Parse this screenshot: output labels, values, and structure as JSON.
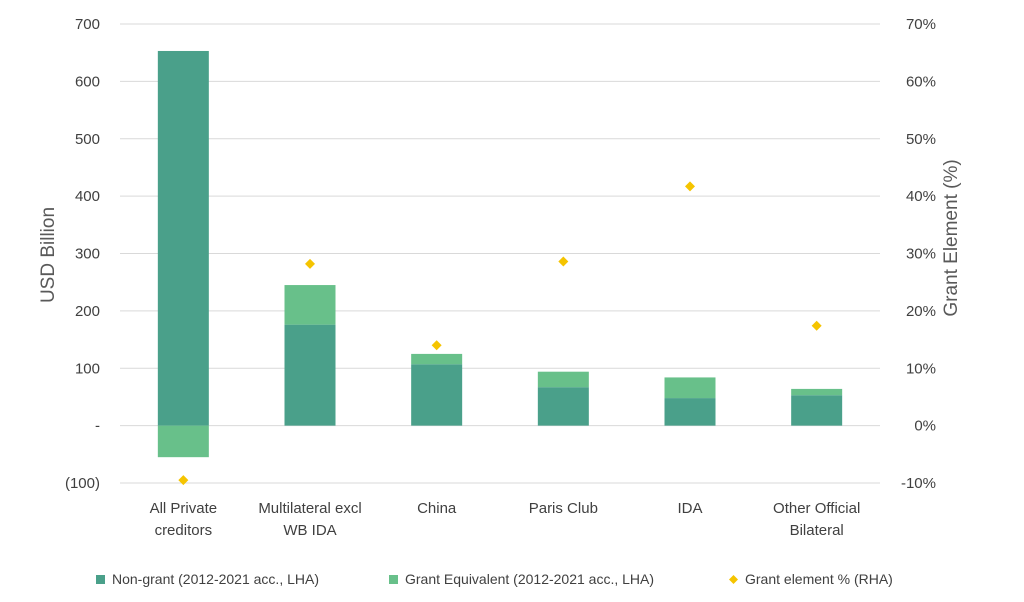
{
  "chart_data": {
    "type": "bar",
    "stacked": true,
    "categories": [
      [
        "All Private",
        "creditors"
      ],
      [
        "Multilateral excl",
        "WB IDA"
      ],
      [
        "China"
      ],
      [
        "Paris Club"
      ],
      [
        "IDA"
      ],
      [
        "Other Official",
        "Bilateral"
      ]
    ],
    "series": [
      {
        "name": "Non-grant (2012-2021 acc., LHA)",
        "type": "bar",
        "axis": "left",
        "color": "#4aa08a",
        "values": [
          653,
          176,
          107,
          67,
          48,
          53
        ]
      },
      {
        "name": "Grant Equivalent (2012-2021 acc., LHA)",
        "type": "bar",
        "axis": "left",
        "color": "#68c08a",
        "values": [
          -55,
          69,
          18,
          27,
          36,
          11
        ]
      },
      {
        "name": "Grant element % (RHA)",
        "type": "scatter",
        "axis": "right",
        "color": "#f5c400",
        "values": [
          -9.5,
          28.2,
          14.0,
          28.6,
          41.7,
          17.4
        ]
      }
    ],
    "ylabel": "USD Billion",
    "y2label": "Grant Element (%)",
    "ylim": [
      -100,
      700
    ],
    "y2lim": [
      -10,
      70
    ],
    "yticks": [
      -100,
      0,
      100,
      200,
      300,
      400,
      500,
      600,
      700
    ],
    "ytick_labels": [
      "(100)",
      "-",
      "100",
      "200",
      "300",
      "400",
      "500",
      "600",
      "700"
    ],
    "y2ticks": [
      -10,
      0,
      10,
      20,
      30,
      40,
      50,
      60,
      70
    ],
    "y2tick_labels": [
      "-10%",
      "0%",
      "10%",
      "20%",
      "30%",
      "40%",
      "50%",
      "60%",
      "70%"
    ],
    "grid": true,
    "legend": "bottom"
  }
}
